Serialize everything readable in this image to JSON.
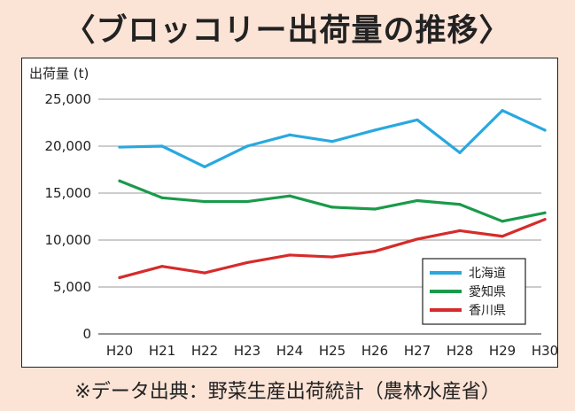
{
  "title": "〈ブロッコリー出荷量の推移〉",
  "source": "※データ出典：野菜生産出荷統計（農林水産省）",
  "chart_data": {
    "type": "line",
    "title": "〈ブロッコリー出荷量の推移〉",
    "ylabel": "出荷量 (t)",
    "xlabel": "",
    "categories": [
      "H20",
      "H21",
      "H22",
      "H23",
      "H24",
      "H25",
      "H26",
      "H27",
      "H28",
      "H29",
      "H30"
    ],
    "ylim": [
      0,
      25000
    ],
    "yticks": [
      0,
      5000,
      10000,
      15000,
      20000,
      25000
    ],
    "ytick_labels": [
      "0",
      "5,000",
      "10,000",
      "15,000",
      "20,000",
      "25,000"
    ],
    "grid": "horizontal",
    "legend_position": "bottom-right",
    "series": [
      {
        "name": "北海道",
        "color": "#29a8e0",
        "values": [
          19900,
          20000,
          17800,
          20000,
          21200,
          20500,
          21700,
          22800,
          19300,
          23800,
          21700
        ]
      },
      {
        "name": "愛知県",
        "color": "#1a9a4a",
        "values": [
          16300,
          14500,
          14100,
          14100,
          14700,
          13500,
          13300,
          14200,
          13800,
          12000,
          12900
        ]
      },
      {
        "name": "香川県",
        "color": "#d62b2b",
        "values": [
          6000,
          7200,
          6500,
          7600,
          8400,
          8200,
          8800,
          10100,
          11000,
          10400,
          12200
        ]
      }
    ]
  }
}
